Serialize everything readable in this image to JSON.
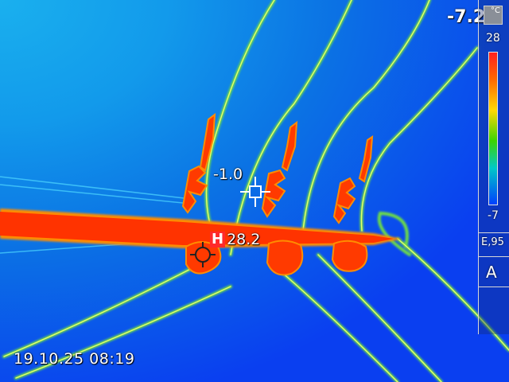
{
  "readouts": {
    "min_temp": "-7.2",
    "timestamp": "19.10.25 08:19"
  },
  "spots": {
    "cold_value": "-1.0",
    "hot_marker": "H",
    "hot_value": "28.2"
  },
  "scale": {
    "unit": "°C",
    "max": "28",
    "min": "-7",
    "emissivity": "E,95",
    "mode": "A"
  },
  "colors": {
    "hot": "#ff3300",
    "hot_edge": "#ff8c00",
    "cable": "#7be84a",
    "cable_core": "#d8ff6a",
    "sky_light": "#1ab0ee",
    "sky_dark": "#0a3ff0"
  },
  "icons": {
    "crosshair": "crosshair-icon",
    "unit": "unit-icon"
  }
}
